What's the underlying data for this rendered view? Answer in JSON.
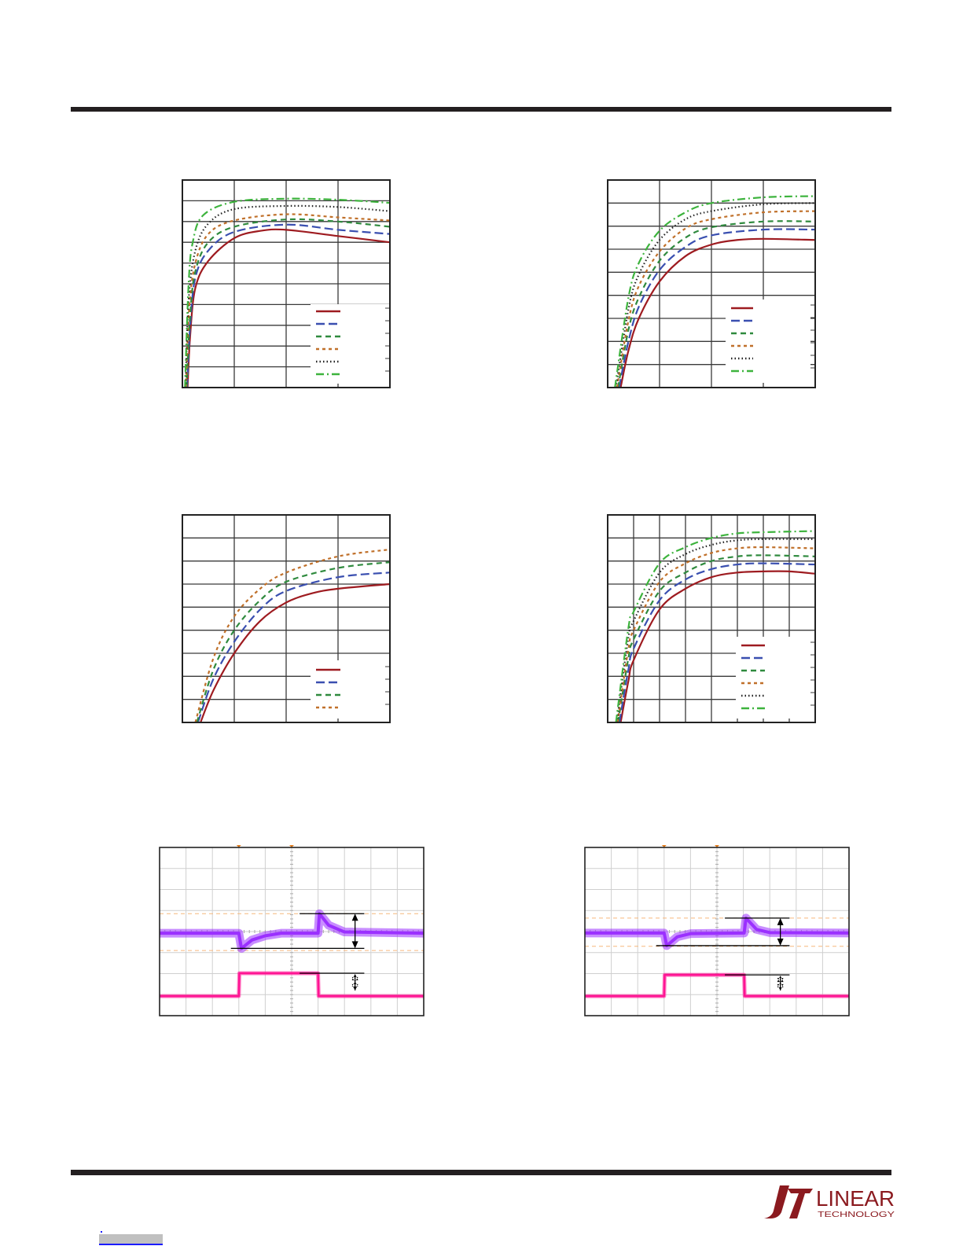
{
  "logo": {
    "line1": "LINEAR",
    "line2": "TECHNOLOGY",
    "color": "#8b1a1f"
  },
  "series_styles": [
    {
      "color": "#9e1b20",
      "dash": "solid"
    },
    {
      "color": "#3a4fb0",
      "dash": "long-dash"
    },
    {
      "color": "#2f8a3e",
      "dash": "dash"
    },
    {
      "color": "#c0702a",
      "dash": "short-dash"
    },
    {
      "color": "#222222",
      "dash": "dotted"
    },
    {
      "color": "#3db33d",
      "dash": "dash-dot"
    }
  ],
  "chart_data": [
    {
      "type": "line",
      "title": "",
      "xlabel": "",
      "ylabel": "",
      "xlim": [
        0,
        4
      ],
      "ylim": [
        0,
        10
      ],
      "grid": true,
      "legend": "bottom-right",
      "series": [
        {
          "points": [
            [
              0.1,
              0
            ],
            [
              0.15,
              2.5
            ],
            [
              0.25,
              4.8
            ],
            [
              0.5,
              6.1
            ],
            [
              1,
              7.2
            ],
            [
              1.5,
              7.55
            ],
            [
              2,
              7.6
            ],
            [
              3,
              7.3
            ],
            [
              4,
              7.0
            ]
          ]
        },
        {
          "points": [
            [
              0.09,
              0
            ],
            [
              0.15,
              3
            ],
            [
              0.25,
              5.3
            ],
            [
              0.5,
              6.6
            ],
            [
              1,
              7.5
            ],
            [
              2,
              7.85
            ],
            [
              3,
              7.6
            ],
            [
              4,
              7.4
            ]
          ]
        },
        {
          "points": [
            [
              0.08,
              0
            ],
            [
              0.15,
              3.5
            ],
            [
              0.25,
              5.6
            ],
            [
              0.5,
              7.0
            ],
            [
              1,
              7.75
            ],
            [
              2,
              8.1
            ],
            [
              3,
              8.0
            ],
            [
              4,
              7.75
            ]
          ]
        },
        {
          "points": [
            [
              0.07,
              0
            ],
            [
              0.13,
              3.8
            ],
            [
              0.25,
              6.0
            ],
            [
              0.5,
              7.4
            ],
            [
              1,
              8.05
            ],
            [
              2,
              8.35
            ],
            [
              3,
              8.2
            ],
            [
              4,
              8.05
            ]
          ]
        },
        {
          "points": [
            [
              0.06,
              0
            ],
            [
              0.12,
              4.2
            ],
            [
              0.25,
              6.6
            ],
            [
              0.5,
              7.9
            ],
            [
              1,
              8.6
            ],
            [
              2,
              8.75
            ],
            [
              3,
              8.7
            ],
            [
              4,
              8.5
            ]
          ]
        },
        {
          "points": [
            [
              0.05,
              0
            ],
            [
              0.12,
              5
            ],
            [
              0.2,
              7.0
            ],
            [
              0.4,
              8.3
            ],
            [
              1,
              8.95
            ],
            [
              2,
              9.1
            ],
            [
              3,
              9.05
            ],
            [
              4,
              8.9
            ]
          ]
        }
      ]
    },
    {
      "type": "line",
      "title": "",
      "xlabel": "",
      "ylabel": "",
      "xlim": [
        0,
        4
      ],
      "ylim": [
        0,
        9
      ],
      "grid": true,
      "legend": "bottom-right",
      "series": [
        {
          "points": [
            [
              0.25,
              0
            ],
            [
              0.4,
              1.6
            ],
            [
              0.6,
              3.0
            ],
            [
              1,
              4.6
            ],
            [
              1.5,
              5.7
            ],
            [
              2,
              6.2
            ],
            [
              2.5,
              6.4
            ],
            [
              3,
              6.45
            ],
            [
              4,
              6.4
            ]
          ]
        },
        {
          "points": [
            [
              0.22,
              0
            ],
            [
              0.4,
              2.0
            ],
            [
              0.6,
              3.5
            ],
            [
              1,
              5.1
            ],
            [
              1.5,
              6.1
            ],
            [
              2,
              6.6
            ],
            [
              3,
              6.85
            ],
            [
              4,
              6.85
            ]
          ]
        },
        {
          "points": [
            [
              0.2,
              0
            ],
            [
              0.4,
              2.5
            ],
            [
              0.6,
              3.9
            ],
            [
              1,
              5.5
            ],
            [
              1.5,
              6.5
            ],
            [
              2,
              6.95
            ],
            [
              3,
              7.2
            ],
            [
              4,
              7.2
            ]
          ]
        },
        {
          "points": [
            [
              0.18,
              0
            ],
            [
              0.4,
              2.9
            ],
            [
              0.6,
              4.4
            ],
            [
              1,
              5.9
            ],
            [
              1.5,
              6.9
            ],
            [
              2,
              7.3
            ],
            [
              3,
              7.6
            ],
            [
              4,
              7.65
            ]
          ]
        },
        {
          "points": [
            [
              0.16,
              0
            ],
            [
              0.4,
              3.4
            ],
            [
              0.6,
              4.9
            ],
            [
              1,
              6.4
            ],
            [
              1.5,
              7.3
            ],
            [
              2,
              7.65
            ],
            [
              3,
              7.95
            ],
            [
              4,
              8.0
            ]
          ]
        },
        {
          "points": [
            [
              0.14,
              0
            ],
            [
              0.4,
              3.9
            ],
            [
              0.6,
              5.4
            ],
            [
              1,
              6.8
            ],
            [
              1.5,
              7.6
            ],
            [
              2,
              8.0
            ],
            [
              3,
              8.25
            ],
            [
              4,
              8.3
            ]
          ]
        }
      ]
    },
    {
      "type": "line",
      "title": "",
      "xlabel": "",
      "ylabel": "",
      "xlim": [
        0,
        4
      ],
      "ylim": [
        0,
        9
      ],
      "grid": true,
      "legend": "bottom-right",
      "series": [
        {
          "points": [
            [
              0.35,
              0
            ],
            [
              0.6,
              1.4
            ],
            [
              1,
              3.0
            ],
            [
              1.5,
              4.4
            ],
            [
              2,
              5.2
            ],
            [
              2.5,
              5.6
            ],
            [
              3,
              5.8
            ],
            [
              4,
              6.0
            ]
          ]
        },
        {
          "points": [
            [
              0.3,
              0
            ],
            [
              0.6,
              1.9
            ],
            [
              1,
              3.5
            ],
            [
              1.5,
              4.9
            ],
            [
              2,
              5.7
            ],
            [
              3,
              6.3
            ],
            [
              4,
              6.5
            ]
          ]
        },
        {
          "points": [
            [
              0.28,
              0
            ],
            [
              0.6,
              2.3
            ],
            [
              1,
              4.0
            ],
            [
              1.5,
              5.3
            ],
            [
              2,
              6.1
            ],
            [
              3,
              6.7
            ],
            [
              4,
              6.95
            ]
          ]
        },
        {
          "points": [
            [
              0.25,
              0
            ],
            [
              0.6,
              2.8
            ],
            [
              1,
              4.6
            ],
            [
              1.5,
              5.8
            ],
            [
              2,
              6.5
            ],
            [
              3,
              7.2
            ],
            [
              4,
              7.5
            ]
          ]
        }
      ]
    },
    {
      "type": "line",
      "title": "",
      "xlabel": "",
      "ylabel": "",
      "xlim": [
        0,
        8
      ],
      "ylim": [
        0,
        9
      ],
      "grid": true,
      "legend": "bottom-right",
      "series": [
        {
          "points": [
            [
              0.5,
              0
            ],
            [
              0.8,
              1.8
            ],
            [
              1,
              2.7
            ],
            [
              2,
              4.9
            ],
            [
              3,
              5.8
            ],
            [
              4,
              6.3
            ],
            [
              5,
              6.5
            ],
            [
              6,
              6.55
            ],
            [
              7,
              6.55
            ],
            [
              8,
              6.45
            ]
          ]
        },
        {
          "points": [
            [
              0.45,
              0
            ],
            [
              0.8,
              2.3
            ],
            [
              1,
              3.2
            ],
            [
              2,
              5.3
            ],
            [
              3,
              6.2
            ],
            [
              4,
              6.65
            ],
            [
              5,
              6.85
            ],
            [
              6,
              6.9
            ],
            [
              8,
              6.85
            ]
          ]
        },
        {
          "points": [
            [
              0.4,
              0
            ],
            [
              0.8,
              2.8
            ],
            [
              1,
              3.6
            ],
            [
              2,
              5.7
            ],
            [
              3,
              6.5
            ],
            [
              4,
              7.0
            ],
            [
              5,
              7.2
            ],
            [
              6,
              7.25
            ],
            [
              8,
              7.2
            ]
          ]
        },
        {
          "points": [
            [
              0.38,
              0
            ],
            [
              0.8,
              3.2
            ],
            [
              1,
              4.0
            ],
            [
              2,
              6.1
            ],
            [
              3,
              6.9
            ],
            [
              4,
              7.35
            ],
            [
              5,
              7.55
            ],
            [
              6,
              7.6
            ],
            [
              8,
              7.55
            ]
          ]
        },
        {
          "points": [
            [
              0.35,
              0
            ],
            [
              0.8,
              3.7
            ],
            [
              1,
              4.4
            ],
            [
              2,
              6.5
            ],
            [
              3,
              7.3
            ],
            [
              4,
              7.7
            ],
            [
              5,
              7.9
            ],
            [
              6,
              7.95
            ],
            [
              8,
              7.95
            ]
          ]
        },
        {
          "points": [
            [
              0.32,
              0
            ],
            [
              0.8,
              4.1
            ],
            [
              1,
              4.8
            ],
            [
              2,
              6.9
            ],
            [
              3,
              7.6
            ],
            [
              4,
              8.0
            ],
            [
              5,
              8.2
            ],
            [
              6,
              8.25
            ],
            [
              8,
              8.3
            ]
          ]
        }
      ]
    },
    {
      "type": "line",
      "title": "",
      "xlabel": "",
      "ylabel": "",
      "xlim": [
        0,
        10
      ],
      "ylim": [
        0,
        8
      ],
      "grid": true,
      "reference_levels": [
        4.85,
        3.1
      ],
      "series": [
        {
          "color": "#9b30ff",
          "points": [
            [
              0,
              3.92
            ],
            [
              3,
              3.92
            ],
            [
              3.1,
              3.2
            ],
            [
              3.5,
              3.6
            ],
            [
              4,
              3.8
            ],
            [
              4.6,
              3.92
            ],
            [
              6,
              3.92
            ],
            [
              6.05,
              4.85
            ],
            [
              6.4,
              4.3
            ],
            [
              7,
              3.98
            ],
            [
              10,
              3.92
            ]
          ]
        },
        {
          "color": "#ff1493",
          "points": [
            [
              0,
              0.93
            ],
            [
              3,
              0.93
            ],
            [
              3.02,
              2.02
            ],
            [
              6,
              2.02
            ],
            [
              6.02,
              0.93
            ],
            [
              10,
              0.93
            ]
          ]
        }
      ]
    },
    {
      "type": "line",
      "title": "",
      "xlabel": "",
      "ylabel": "",
      "xlim": [
        0,
        10
      ],
      "ylim": [
        0,
        8
      ],
      "grid": true,
      "reference_levels": [
        4.64,
        3.3
      ],
      "series": [
        {
          "color": "#9b30ff",
          "points": [
            [
              0,
              3.93
            ],
            [
              3,
              3.93
            ],
            [
              3.1,
              3.33
            ],
            [
              3.5,
              3.75
            ],
            [
              4,
              3.9
            ],
            [
              6.03,
              3.93
            ],
            [
              6.1,
              4.64
            ],
            [
              6.5,
              4.1
            ],
            [
              7,
              3.95
            ],
            [
              10,
              3.93
            ]
          ]
        },
        {
          "color": "#ff1493",
          "points": [
            [
              0,
              0.93
            ],
            [
              3,
              0.93
            ],
            [
              3.02,
              1.94
            ],
            [
              6.03,
              1.94
            ],
            [
              6.05,
              0.93
            ],
            [
              10,
              0.93
            ]
          ]
        }
      ]
    }
  ]
}
